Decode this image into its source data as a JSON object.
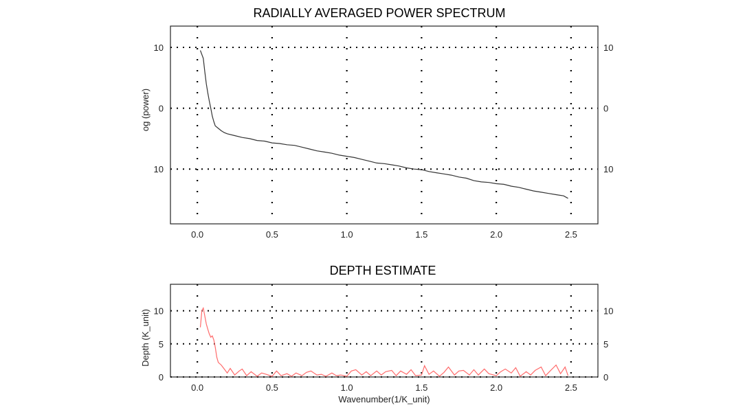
{
  "chart_data": [
    {
      "type": "line",
      "title": "RADIALLY AVERAGED POWER SPECTRUM",
      "xlabel": "",
      "ylabel": "og (power)",
      "xlim": [
        -0.18,
        2.68
      ],
      "ylim": [
        -19,
        13.5
      ],
      "xticks": [
        0.0,
        0.5,
        1.0,
        1.5,
        2.0,
        2.5
      ],
      "xtick_labels": [
        "0.0",
        "0.5",
        "1.0",
        "1.5",
        "2.0",
        "2.5"
      ],
      "yticks": [
        10,
        0,
        -10
      ],
      "ytick_labels_left": [
        "10",
        "0",
        "10"
      ],
      "ytick_labels_right": [
        "10",
        "0",
        "10"
      ],
      "grid": true,
      "line_color": "#333333",
      "series": [
        {
          "points": [
            [
              0.02,
              9.5
            ],
            [
              0.04,
              8.2
            ],
            [
              0.05,
              6.0
            ],
            [
              0.06,
              4.0
            ],
            [
              0.07,
              2.5
            ],
            [
              0.08,
              1.2
            ],
            [
              0.09,
              0.0
            ],
            [
              0.1,
              -1.3
            ],
            [
              0.11,
              -2.2
            ],
            [
              0.12,
              -2.9
            ],
            [
              0.14,
              -3.3
            ],
            [
              0.16,
              -3.7
            ],
            [
              0.18,
              -4.0
            ],
            [
              0.2,
              -4.2
            ],
            [
              0.25,
              -4.5
            ],
            [
              0.3,
              -4.8
            ],
            [
              0.35,
              -5.0
            ],
            [
              0.4,
              -5.3
            ],
            [
              0.45,
              -5.4
            ],
            [
              0.5,
              -5.7
            ],
            [
              0.55,
              -5.8
            ],
            [
              0.6,
              -6.0
            ],
            [
              0.65,
              -6.1
            ],
            [
              0.7,
              -6.4
            ],
            [
              0.75,
              -6.7
            ],
            [
              0.8,
              -7.0
            ],
            [
              0.85,
              -7.2
            ],
            [
              0.9,
              -7.4
            ],
            [
              0.95,
              -7.7
            ],
            [
              1.0,
              -7.9
            ],
            [
              1.05,
              -8.1
            ],
            [
              1.1,
              -8.4
            ],
            [
              1.15,
              -8.7
            ],
            [
              1.2,
              -9.0
            ],
            [
              1.25,
              -9.1
            ],
            [
              1.3,
              -9.3
            ],
            [
              1.35,
              -9.5
            ],
            [
              1.4,
              -9.8
            ],
            [
              1.45,
              -10.0
            ],
            [
              1.5,
              -10.1
            ],
            [
              1.55,
              -10.4
            ],
            [
              1.6,
              -10.6
            ],
            [
              1.65,
              -10.8
            ],
            [
              1.7,
              -11.0
            ],
            [
              1.75,
              -11.3
            ],
            [
              1.8,
              -11.5
            ],
            [
              1.85,
              -11.9
            ],
            [
              1.9,
              -12.1
            ],
            [
              1.95,
              -12.2
            ],
            [
              2.0,
              -12.4
            ],
            [
              2.05,
              -12.5
            ],
            [
              2.1,
              -12.8
            ],
            [
              2.15,
              -13.0
            ],
            [
              2.2,
              -13.3
            ],
            [
              2.25,
              -13.6
            ],
            [
              2.3,
              -13.8
            ],
            [
              2.35,
              -14.0
            ],
            [
              2.4,
              -14.2
            ],
            [
              2.45,
              -14.4
            ],
            [
              2.48,
              -14.8
            ]
          ]
        }
      ]
    },
    {
      "type": "line",
      "title": "DEPTH ESTIMATE",
      "xlabel": "Wavenumber(1/K_unit)",
      "ylabel": "Depth (K_unit)",
      "xlim": [
        -0.18,
        2.68
      ],
      "ylim": [
        0,
        14
      ],
      "xticks": [
        0.0,
        0.5,
        1.0,
        1.5,
        2.0,
        2.5
      ],
      "xtick_labels": [
        "0.0",
        "0.5",
        "1.0",
        "1.5",
        "2.0",
        "2.5"
      ],
      "yticks": [
        10,
        5,
        0
      ],
      "ytick_labels_left": [
        "10",
        "5",
        "0"
      ],
      "ytick_labels_right": [
        "10",
        "5",
        "0"
      ],
      "grid": true,
      "line_color": "#ff6b6b",
      "series": [
        {
          "points": [
            [
              0.02,
              7.5
            ],
            [
              0.03,
              10.0
            ],
            [
              0.04,
              10.4
            ],
            [
              0.05,
              9.2
            ],
            [
              0.06,
              8.0
            ],
            [
              0.07,
              7.2
            ],
            [
              0.08,
              6.5
            ],
            [
              0.09,
              6.0
            ],
            [
              0.1,
              6.2
            ],
            [
              0.11,
              5.6
            ],
            [
              0.12,
              4.5
            ],
            [
              0.13,
              3.0
            ],
            [
              0.14,
              2.2
            ],
            [
              0.16,
              1.8
            ],
            [
              0.18,
              1.2
            ],
            [
              0.2,
              0.6
            ],
            [
              0.22,
              1.3
            ],
            [
              0.25,
              0.3
            ],
            [
              0.28,
              0.9
            ],
            [
              0.3,
              1.2
            ],
            [
              0.33,
              0.2
            ],
            [
              0.36,
              0.8
            ],
            [
              0.4,
              0.1
            ],
            [
              0.43,
              0.6
            ],
            [
              0.46,
              0.4
            ],
            [
              0.5,
              0.1
            ],
            [
              0.53,
              0.9
            ],
            [
              0.56,
              0.2
            ],
            [
              0.6,
              0.5
            ],
            [
              0.63,
              0.1
            ],
            [
              0.66,
              0.6
            ],
            [
              0.7,
              0.2
            ],
            [
              0.73,
              0.7
            ],
            [
              0.76,
              0.9
            ],
            [
              0.8,
              0.3
            ],
            [
              0.83,
              0.4
            ],
            [
              0.86,
              0.1
            ],
            [
              0.9,
              0.6
            ],
            [
              0.93,
              0.2
            ],
            [
              0.96,
              0.3
            ],
            [
              1.0,
              0.1
            ],
            [
              1.03,
              0.9
            ],
            [
              1.06,
              1.1
            ],
            [
              1.1,
              0.3
            ],
            [
              1.13,
              0.8
            ],
            [
              1.16,
              0.2
            ],
            [
              1.2,
              0.9
            ],
            [
              1.23,
              0.3
            ],
            [
              1.26,
              0.8
            ],
            [
              1.3,
              1.0
            ],
            [
              1.33,
              0.2
            ],
            [
              1.36,
              0.9
            ],
            [
              1.4,
              0.4
            ],
            [
              1.43,
              1.1
            ],
            [
              1.46,
              0.2
            ],
            [
              1.5,
              0.3
            ],
            [
              1.52,
              1.7
            ],
            [
              1.55,
              0.4
            ],
            [
              1.58,
              0.9
            ],
            [
              1.62,
              0.1
            ],
            [
              1.65,
              0.7
            ],
            [
              1.68,
              1.5
            ],
            [
              1.72,
              0.3
            ],
            [
              1.75,
              0.9
            ],
            [
              1.78,
              1.0
            ],
            [
              1.82,
              0.3
            ],
            [
              1.85,
              1.1
            ],
            [
              1.88,
              0.3
            ],
            [
              1.92,
              1.2
            ],
            [
              1.95,
              0.5
            ],
            [
              2.0,
              0.2
            ],
            [
              2.03,
              0.8
            ],
            [
              2.06,
              1.2
            ],
            [
              2.1,
              0.6
            ],
            [
              2.13,
              1.4
            ],
            [
              2.16,
              0.1
            ],
            [
              2.2,
              0.8
            ],
            [
              2.23,
              0.3
            ],
            [
              2.26,
              1.0
            ],
            [
              2.3,
              1.5
            ],
            [
              2.33,
              0.2
            ],
            [
              2.36,
              0.9
            ],
            [
              2.4,
              1.8
            ],
            [
              2.43,
              0.5
            ],
            [
              2.46,
              1.5
            ],
            [
              2.48,
              0.2
            ]
          ]
        }
      ]
    }
  ]
}
